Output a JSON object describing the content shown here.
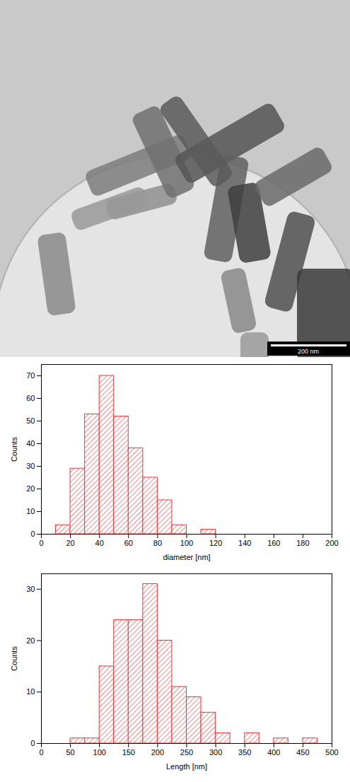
{
  "micrograph": {
    "scale_bar_label": "200 nm"
  },
  "chart_data": [
    {
      "type": "histogram",
      "xlabel": "diameter [nm]",
      "ylabel": "Counts",
      "bins": [
        10,
        20,
        30,
        40,
        50,
        60,
        70,
        80,
        90,
        100,
        110,
        120
      ],
      "values": [
        4,
        29,
        53,
        70,
        52,
        38,
        25,
        15,
        4,
        0,
        2
      ],
      "color": "#e8383d",
      "xlim": [
        0,
        200
      ],
      "xticks": [
        0,
        20,
        40,
        60,
        80,
        100,
        120,
        140,
        160,
        180,
        200
      ],
      "ylim": [
        0,
        75
      ],
      "yticks": [
        0,
        10,
        20,
        30,
        40,
        50,
        60,
        70
      ]
    },
    {
      "type": "histogram",
      "xlabel": "Length [nm]",
      "ylabel": "Counts",
      "bins": [
        50,
        75,
        100,
        125,
        150,
        175,
        200,
        225,
        250,
        275,
        300,
        325,
        350,
        375,
        400,
        425,
        450,
        475
      ],
      "values": [
        1,
        1,
        15,
        24,
        24,
        31,
        20,
        11,
        9,
        6,
        2,
        0,
        2,
        0,
        1,
        0,
        1
      ],
      "color": "#e8383d",
      "xlim": [
        0,
        500
      ],
      "xticks": [
        0,
        50,
        100,
        150,
        200,
        250,
        300,
        350,
        400,
        450,
        500
      ],
      "ylim": [
        0,
        33
      ],
      "yticks": [
        0,
        10,
        20,
        30
      ]
    }
  ]
}
